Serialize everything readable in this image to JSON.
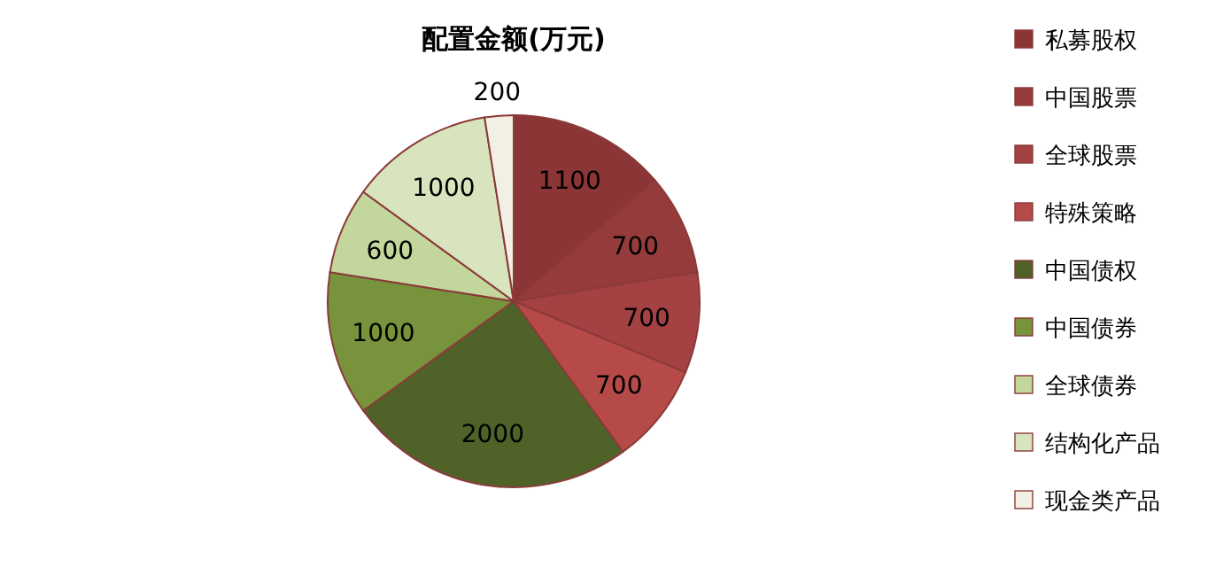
{
  "chart_data": {
    "type": "pie",
    "title": "配置金额(万元)",
    "categories": [
      "私募股权",
      "中国股票",
      "全球股票",
      "特殊策略",
      "中国债权",
      "中国债券",
      "全球债券",
      "结构化产品",
      "现金类产品"
    ],
    "values": [
      1100,
      700,
      700,
      700,
      2000,
      1000,
      600,
      1000,
      200
    ],
    "colors": [
      "#8b3536",
      "#963b3c",
      "#a44142",
      "#b64a49",
      "#4f6228",
      "#77933c",
      "#c3d69b",
      "#d7e4bd",
      "#f2f0e4"
    ],
    "data_labels": true,
    "legend": "right"
  }
}
